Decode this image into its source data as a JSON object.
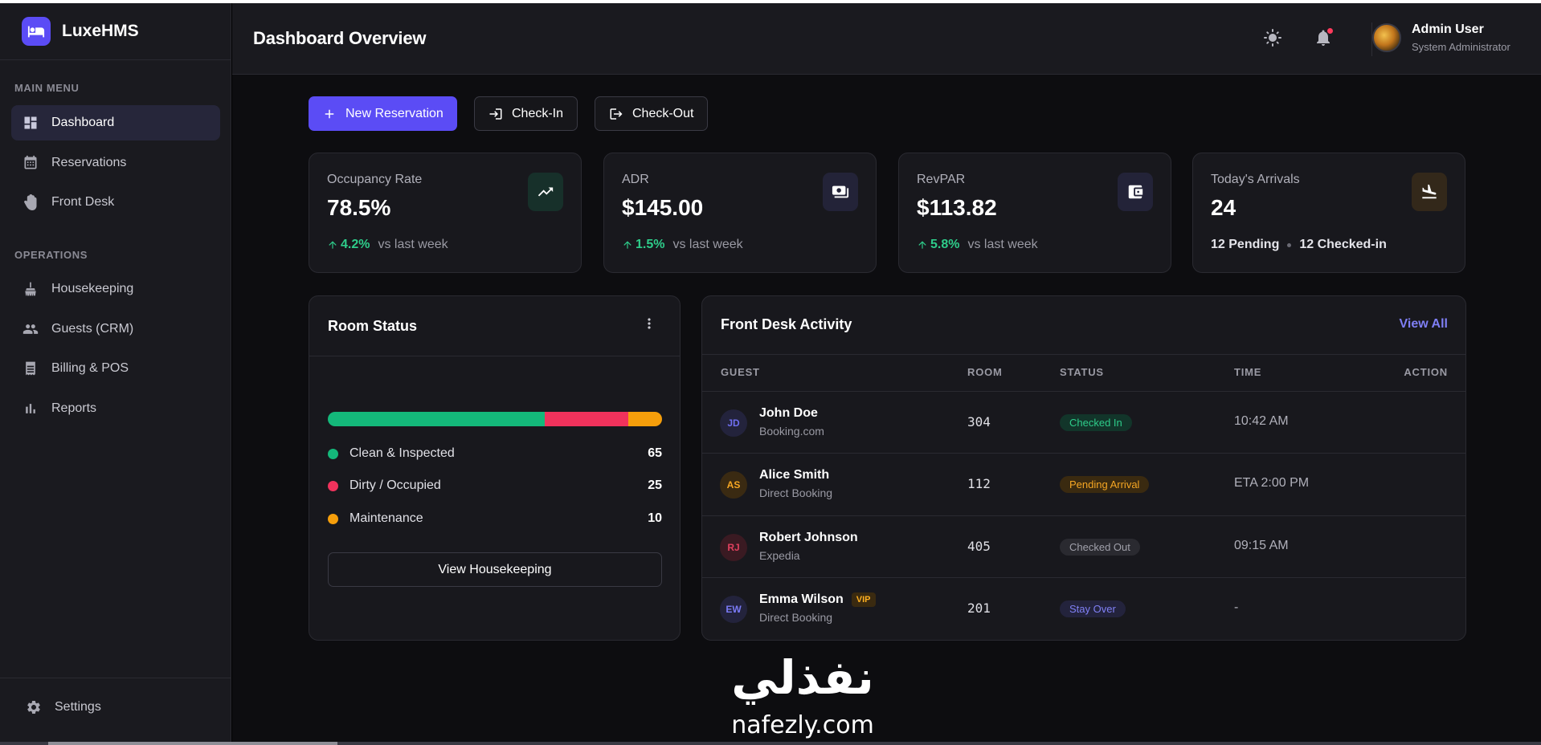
{
  "brand": {
    "name": "LuxeHMS"
  },
  "sidebar": {
    "main_label": "MAIN MENU",
    "ops_label": "OPERATIONS",
    "items": [
      {
        "label": "Dashboard",
        "icon": "dashboard-icon"
      },
      {
        "label": "Reservations",
        "icon": "calendar-icon"
      },
      {
        "label": "Front Desk",
        "icon": "hand-icon"
      },
      {
        "label": "Housekeeping",
        "icon": "broom-icon"
      },
      {
        "label": "Guests (CRM)",
        "icon": "people-icon"
      },
      {
        "label": "Billing & POS",
        "icon": "receipt-icon"
      },
      {
        "label": "Reports",
        "icon": "bar-chart-icon"
      }
    ],
    "settings_label": "Settings"
  },
  "header": {
    "title": "Dashboard Overview",
    "user_name": "Admin User",
    "user_role": "System Administrator"
  },
  "actions": {
    "new_reservation": "New Reservation",
    "check_in": "Check-In",
    "check_out": "Check-Out"
  },
  "stats": [
    {
      "label": "Occupancy Rate",
      "value": "78.5%",
      "trend": "4.2%",
      "trend_text": "vs last week",
      "icon": "trending-up-icon",
      "icon_bg": "#17302a"
    },
    {
      "label": "ADR",
      "value": "$145.00",
      "trend": "1.5%",
      "trend_text": "vs last week",
      "icon": "money-icon",
      "icon_bg": "#232338"
    },
    {
      "label": "RevPAR",
      "value": "$113.82",
      "trend": "5.8%",
      "trend_text": "vs last week",
      "icon": "wallet-icon",
      "icon_bg": "#232338"
    },
    {
      "label": "Today's Arrivals",
      "value": "24",
      "pending": "12 Pending",
      "checked_in": "12 Checked-in",
      "icon": "plane-landing-icon",
      "icon_bg": "#33281a"
    }
  ],
  "room_status": {
    "title": "Room Status",
    "segments": [
      {
        "label": "Clean & Inspected",
        "count": "65",
        "color": "#14b87a"
      },
      {
        "label": "Dirty / Occupied",
        "count": "25",
        "color": "#f0325c"
      },
      {
        "label": "Maintenance",
        "count": "10",
        "color": "#f59e0b"
      }
    ],
    "button": "View Housekeeping"
  },
  "activity": {
    "title": "Front Desk Activity",
    "view_all": "View All",
    "columns": [
      "GUEST",
      "ROOM",
      "STATUS",
      "TIME",
      "ACTION"
    ],
    "rows": [
      {
        "initials": "JD",
        "name": "John Doe",
        "source": "Booking.com",
        "room": "304",
        "status": "Checked In",
        "time": "10:42 AM",
        "avatar_color": "#6f6ff0",
        "avatar_bg": "#23233c",
        "status_color": "#2ecc8a",
        "status_bg": "#12352a"
      },
      {
        "initials": "AS",
        "name": "Alice Smith",
        "source": "Direct Booking",
        "room": "112",
        "status": "Pending Arrival",
        "time": "ETA 2:00 PM",
        "avatar_color": "#f5a623",
        "avatar_bg": "#3a2a12",
        "status_color": "#f5a623",
        "status_bg": "#3a2a10"
      },
      {
        "initials": "RJ",
        "name": "Robert Johnson",
        "source": "Expedia",
        "room": "405",
        "status": "Checked Out",
        "time": "09:15 AM",
        "avatar_color": "#e0405e",
        "avatar_bg": "#3a1a22",
        "status_color": "#a0a0aa",
        "status_bg": "#2a2a30"
      },
      {
        "initials": "EW",
        "name": "Emma Wilson",
        "vip": "VIP",
        "source": "Direct Booking",
        "room": "201",
        "status": "Stay Over",
        "time": "-",
        "avatar_color": "#7a7af5",
        "avatar_bg": "#23233c",
        "status_color": "#8080f5",
        "status_bg": "#23233c"
      }
    ]
  },
  "watermark": {
    "arabic": "نفذلي",
    "domain": "nafezly.com"
  }
}
